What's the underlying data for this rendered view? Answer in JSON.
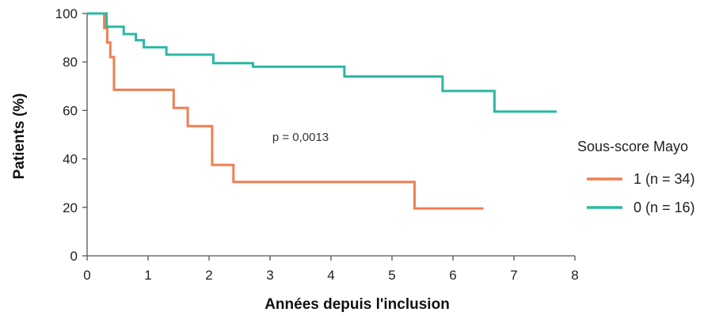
{
  "chart_data": {
    "type": "line",
    "step": true,
    "xlabel": "Années depuis l'inclusion",
    "ylabel": "Patients (%)",
    "xlim": [
      0,
      8
    ],
    "ylim": [
      0,
      100
    ],
    "x_ticks": [
      "0",
      "1",
      "2",
      "3",
      "4",
      "5",
      "6",
      "7",
      "8"
    ],
    "y_ticks": [
      "0",
      "20",
      "40",
      "60",
      "80",
      "100"
    ],
    "grid": false,
    "annotation": {
      "text": "p = 0,0013",
      "x": 3.5,
      "y": 49
    },
    "legend": {
      "title": "Sous-score Mayo",
      "position": "right"
    },
    "series": [
      {
        "name": "1 (n = 34)",
        "color": "#f07f52",
        "points": [
          [
            0,
            100
          ],
          [
            0.28,
            100
          ],
          [
            0.28,
            94
          ],
          [
            0.33,
            94
          ],
          [
            0.33,
            88
          ],
          [
            0.38,
            88
          ],
          [
            0.38,
            82
          ],
          [
            0.44,
            82
          ],
          [
            0.44,
            68.5
          ],
          [
            1.42,
            68.5
          ],
          [
            1.42,
            61
          ],
          [
            1.65,
            61
          ],
          [
            1.65,
            53.5
          ],
          [
            2.05,
            53.5
          ],
          [
            2.05,
            37.5
          ],
          [
            2.4,
            37.5
          ],
          [
            2.4,
            30.5
          ],
          [
            5.37,
            30.5
          ],
          [
            5.37,
            19.5
          ],
          [
            6.5,
            19.5
          ]
        ]
      },
      {
        "name": "0 (n = 16)",
        "color": "#2bb8a3",
        "points": [
          [
            0,
            100
          ],
          [
            0.32,
            100
          ],
          [
            0.32,
            94.5
          ],
          [
            0.6,
            94.5
          ],
          [
            0.6,
            91.5
          ],
          [
            0.8,
            91.5
          ],
          [
            0.8,
            89
          ],
          [
            0.93,
            89
          ],
          [
            0.93,
            86
          ],
          [
            1.3,
            86
          ],
          [
            1.3,
            83
          ],
          [
            2.07,
            83
          ],
          [
            2.07,
            79.5
          ],
          [
            2.72,
            79.5
          ],
          [
            2.72,
            78
          ],
          [
            4.22,
            78
          ],
          [
            4.22,
            74
          ],
          [
            5.83,
            74
          ],
          [
            5.83,
            68
          ],
          [
            6.68,
            68
          ],
          [
            6.68,
            59.5
          ],
          [
            7.7,
            59.5
          ]
        ]
      }
    ]
  }
}
